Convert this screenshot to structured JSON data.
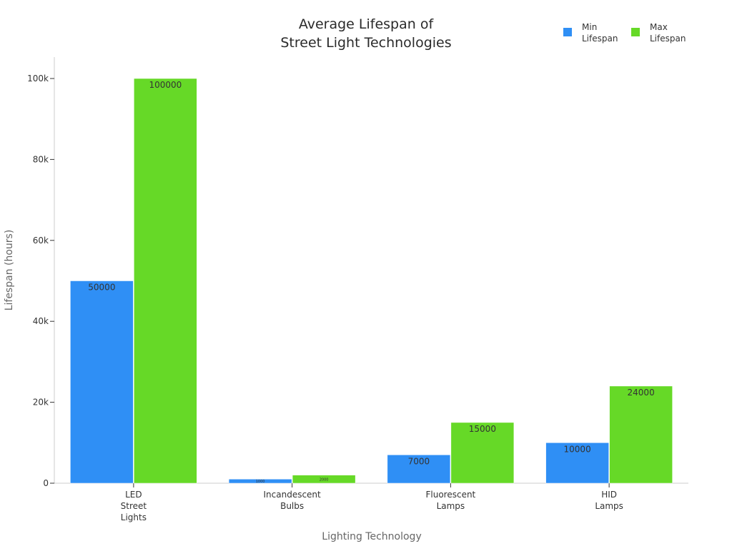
{
  "chart_data": {
    "type": "bar",
    "title_lines": [
      "Average Lifespan of",
      "Street Light Technologies"
    ],
    "xlabel": "Lighting Technology",
    "ylabel": "Lifespan (hours)",
    "categories": [
      [
        "LED",
        "Street",
        "Lights"
      ],
      [
        "Incandescent",
        "Bulbs"
      ],
      [
        "Fluorescent",
        "Lamps"
      ],
      [
        "HID",
        "Lamps"
      ]
    ],
    "series": [
      {
        "name_lines": [
          "Min",
          "Lifespan"
        ],
        "color": "#2f8ff5",
        "values": [
          50000,
          1000,
          7000,
          10000
        ]
      },
      {
        "name_lines": [
          "Max",
          "Lifespan"
        ],
        "color": "#66d927",
        "values": [
          100000,
          2000,
          15000,
          24000
        ]
      }
    ],
    "ylim": [
      0,
      105000
    ],
    "yticks": [
      0,
      20000,
      40000,
      60000,
      80000,
      100000
    ],
    "ytick_labels": [
      "0",
      "20k",
      "40k",
      "60k",
      "80k",
      "100k"
    ],
    "legend_position": "top-right",
    "grid": false
  }
}
